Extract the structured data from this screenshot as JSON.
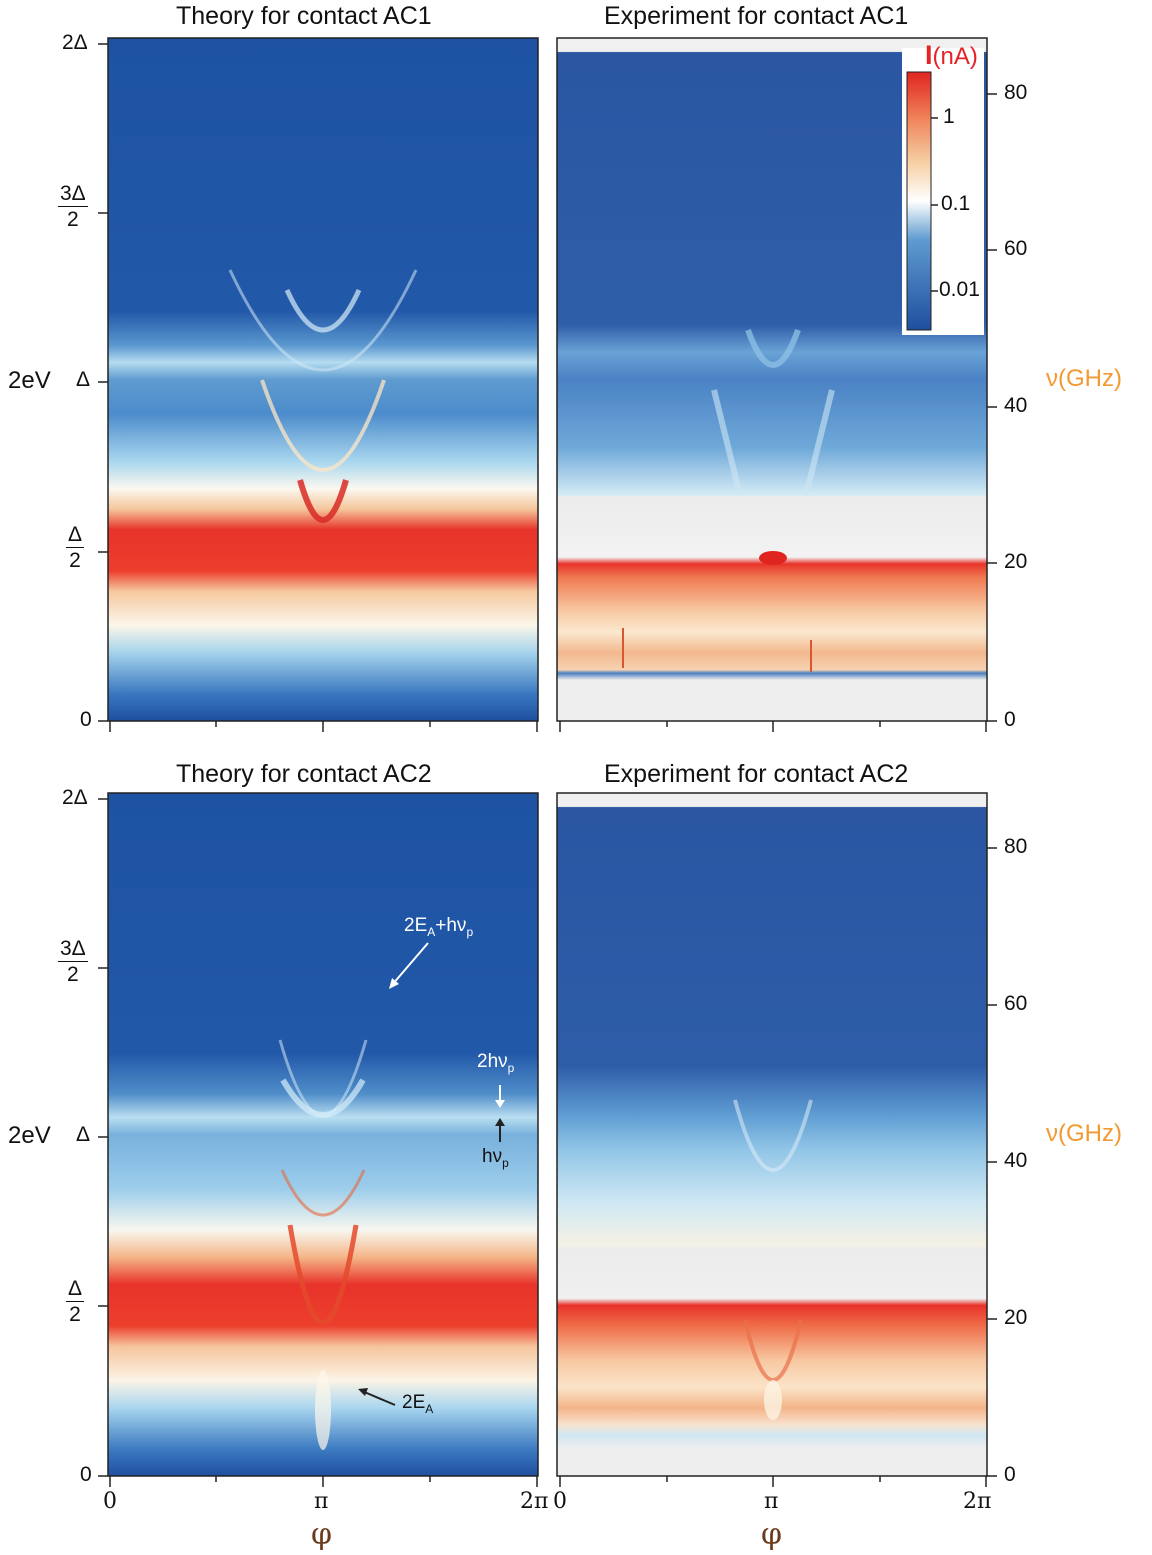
{
  "chart_data": [
    {
      "type": "heatmap",
      "title": "Theory for contact AC1",
      "xlabel": "φ",
      "ylabel": "2eV",
      "x_ticks": [
        "",
        "",
        ""
      ],
      "y_ticks": [
        "0",
        "Δ/2",
        "Δ",
        "3Δ/2",
        "2Δ"
      ],
      "xlim": [
        0,
        6.2832
      ],
      "ylim_units_of_Delta": [
        0,
        2
      ],
      "features": [
        {
          "name": "band",
          "y_over_Delta": 0.5,
          "color": "red"
        },
        {
          "name": "band",
          "y_over_Delta": 1.0,
          "color": "light-blue"
        }
      ]
    },
    {
      "type": "heatmap",
      "title": "Experiment for contact AC1",
      "xlabel": "φ",
      "ylabel": "ν(GHz)",
      "x_ticks": [
        "",
        "",
        ""
      ],
      "y_ticks": [
        0,
        20,
        40,
        60,
        80
      ],
      "ylim": [
        0,
        87
      ],
      "colorbar": {
        "label": "I(nA)",
        "scale": "log",
        "ticks": [
          "1",
          "0.1",
          "0.01"
        ]
      }
    },
    {
      "type": "heatmap",
      "title": "Theory for contact AC2",
      "xlabel": "φ",
      "ylabel": "2eV",
      "x_ticks": [
        "0",
        "π",
        "2π"
      ],
      "y_ticks": [
        "0",
        "Δ/2",
        "Δ",
        "3Δ/2",
        "2Δ"
      ],
      "annotations": [
        "2EA+hνp",
        "2hνp",
        "hνp",
        "2EA"
      ]
    },
    {
      "type": "heatmap",
      "title": "Experiment for contact AC2",
      "xlabel": "φ",
      "ylabel": "ν(GHz)",
      "x_ticks": [
        "0",
        "π",
        "2π"
      ],
      "y_ticks": [
        0,
        20,
        40,
        60,
        80
      ],
      "ylim": [
        0,
        87
      ]
    }
  ],
  "labels": {
    "theory1": "Theory for contact AC1",
    "exp1": "Experiment for contact AC1",
    "theory2": "Theory for contact AC2",
    "exp2": "Experiment for contact AC2",
    "two_ev": "2eV",
    "nu_ghz": "ν(GHz)",
    "phi": "φ",
    "delta_2": "2Δ",
    "delta_1": "Δ",
    "three_delta_num": "3Δ",
    "half_delta_num": "Δ",
    "den": "2",
    "zero": "0",
    "x_zero": "0",
    "x_pi": "π",
    "x_twopi": "2π",
    "g0": "0",
    "g20": "20",
    "g40": "40",
    "g60": "60",
    "g80": "80",
    "cb_I": "I",
    "cb_unit": "(nA)",
    "cb_1": "1",
    "cb_01": "0.1",
    "cb_001": "0.01",
    "ann_2EA_hvp_a": "2E",
    "ann_2EA_hvp_sub": "A",
    "ann_2EA_hvp_b": "+hν",
    "ann_2EA_hvp_sub2": "p",
    "ann_2hvp_a": "2hν",
    "ann_2hvp_sub": "p",
    "ann_hvp_a": "hν",
    "ann_hvp_sub": "p",
    "ann_2EA_a": "2E",
    "ann_2EA_sub": "A"
  },
  "colors": {
    "deep_blue": "#1e53a3",
    "mid_blue": "#3a78c0",
    "light_blue": "#a9d6ef",
    "white": "#f7f7f2",
    "cream": "#f7e2b8",
    "orange": "#f2a679",
    "red": "#e8332a",
    "accent_nu": "#f29a32",
    "cb_label": "#e52326"
  }
}
